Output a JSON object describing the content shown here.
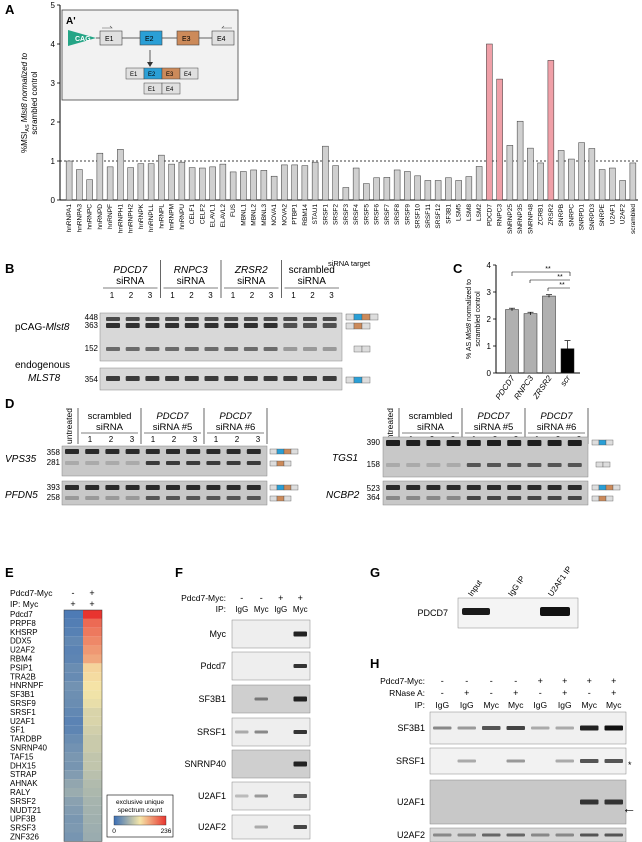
{
  "figure": {
    "panel_labels": [
      "A",
      "B",
      "C",
      "D",
      "E",
      "F",
      "G",
      "H"
    ]
  },
  "panel_a": {
    "inset_label": "A'",
    "inset_promoter": "CAG",
    "inset_exons": [
      "E1",
      "E2",
      "E3",
      "E4"
    ],
    "inset_products": [
      [
        "E1",
        "E2",
        "E3",
        "E4"
      ],
      [
        "E1",
        "E4"
      ]
    ],
    "ylabel_1": "%MSI",
    "ylabel_sub": "AS",
    "ylabel_2": "Mlst8 normalized to",
    "ylabel_3": "scrambled control",
    "xlabel": "siRNA target",
    "bar_colors": {
      "default": "#d0d0d0",
      "highlight": "#f0a0a8"
    }
  },
  "chart_data": [
    {
      "type": "bar",
      "title": "",
      "xlabel": "siRNA target",
      "ylabel": "%MSI AS Mlst8 normalized to scrambled control",
      "ylim": [
        0,
        5
      ],
      "yticks": [
        0,
        1,
        2,
        3,
        4,
        5
      ],
      "reference_line": 1,
      "categories": [
        "hnRNPA1",
        "hnRNPA3",
        "hnRNPC",
        "hnRNPD",
        "hnRNPF",
        "hnRNPH1",
        "hnRNPH2",
        "hnRNPK",
        "hnRNPLL",
        "hnRNPL",
        "hnRNPM",
        "hnRNPU",
        "CELF1",
        "CELF2",
        "ELAVL1",
        "ELAVL2",
        "FUS",
        "MBNL1",
        "MBNL2",
        "MBNL3",
        "NOVA1",
        "NOVA2",
        "PTBP1",
        "RBM14",
        "STAU1",
        "SRSF1",
        "SRSF2",
        "SRSF3",
        "SRSF4",
        "SRSF5",
        "SRSF6",
        "SRSF7",
        "SRSF8",
        "SRSF9",
        "SRSF10",
        "SRSF11",
        "SRSF12",
        "SF3B1",
        "LSM5",
        "LSM8",
        "LSM2",
        "PDCD7",
        "RNPC3",
        "SNRNP25",
        "SNRNP35",
        "SNRNP48",
        "ZCRB1",
        "ZRSR2",
        "SNRPB",
        "SNRPC",
        "SNRPD1",
        "SNRPD3",
        "SNRPE",
        "U2AF1",
        "U2AF2",
        "scrambled"
      ],
      "values": [
        1.0,
        0.78,
        0.52,
        1.2,
        0.85,
        1.3,
        0.83,
        0.93,
        0.93,
        1.15,
        0.92,
        0.97,
        0.83,
        0.82,
        0.85,
        0.92,
        0.72,
        0.73,
        0.77,
        0.76,
        0.61,
        0.9,
        0.9,
        0.88,
        0.97,
        1.38,
        0.88,
        0.32,
        0.82,
        0.42,
        0.57,
        0.58,
        0.77,
        0.73,
        0.62,
        0.5,
        0.5,
        0.57,
        0.5,
        0.6,
        0.86,
        4.0,
        3.1,
        1.4,
        2.02,
        1.33,
        0.95,
        3.58,
        1.27,
        1.05,
        1.47,
        1.32,
        0.78,
        0.82,
        0.5,
        0.95
      ],
      "highlighted": [
        "PDCD7",
        "RNPC3",
        "ZRSR2"
      ]
    },
    {
      "type": "bar",
      "title": "",
      "xlabel": "",
      "ylabel": "% AS Mlst8 normalized to scrambled control",
      "ylim": [
        0,
        4
      ],
      "yticks": [
        0,
        1,
        2,
        3,
        4
      ],
      "categories": [
        "PDCD7",
        "RNPC3",
        "ZRSR2",
        "scr"
      ],
      "values": [
        2.35,
        2.2,
        2.85,
        0.9
      ],
      "errors": [
        0.05,
        0.05,
        0.05,
        0.3
      ],
      "colors": [
        "#b0b0b0",
        "#b0b0b0",
        "#b0b0b0",
        "#000000"
      ],
      "significance": "**"
    }
  ],
  "panel_b": {
    "groups": [
      {
        "name": "PDCD7",
        "sub": "siRNA"
      },
      {
        "name": "RNPC3",
        "sub": "siRNA"
      },
      {
        "name": "ZRSR2",
        "sub": "siRNA"
      },
      {
        "name": "scrambled",
        "sub": "siRNA"
      }
    ],
    "lanes": [
      "1",
      "2",
      "3"
    ],
    "row1_label": "pCAG-",
    "row1_label_italic": "Mlst8",
    "row1_sizes": [
      "448",
      "363",
      "152"
    ],
    "row2_label_1": "endogenous",
    "row2_label_2": "MLST8",
    "row2_sizes": [
      "354"
    ]
  },
  "panel_c": {
    "ylabel_1": "% AS",
    "ylabel_italic": "Mlst8",
    "ylabel_2": "normalized to",
    "ylabel_3": "scrambled control",
    "sig": "**"
  },
  "panel_d": {
    "untreated": "untreated",
    "left_groups": [
      {
        "name": "scrambled",
        "sub": "siRNA"
      },
      {
        "name": "PDCD7",
        "sub": "siRNA #5"
      },
      {
        "name": "PDCD7",
        "sub": "siRNA #6"
      }
    ],
    "right_groups": [
      {
        "name": "scrambled",
        "sub": "siRNA"
      },
      {
        "name": "PDCD7",
        "sub": "siRNA #5"
      },
      {
        "name": "PDCD7",
        "sub": "siRNA #6"
      }
    ],
    "lanes": [
      "1",
      "2",
      "3"
    ],
    "genes_left": [
      {
        "name": "VPS35",
        "sizes": [
          "358",
          "281"
        ]
      },
      {
        "name": "PFDN5",
        "sizes": [
          "393",
          "258"
        ]
      }
    ],
    "genes_right": [
      {
        "name": "TGS1",
        "sizes": [
          "390",
          "158"
        ]
      },
      {
        "name": "NCBP2",
        "sizes": [
          "523",
          "364"
        ]
      }
    ]
  },
  "panel_e": {
    "header_pdcd7": "Pdcd7-Myc",
    "header_ip": "IP: Myc",
    "col_pdcd7": [
      "-",
      "+"
    ],
    "col_ip": [
      "+",
      "+"
    ],
    "proteins": [
      "Pdcd7",
      "PRPF8",
      "KHSRP",
      "DDX5",
      "U2AF2",
      "RBM4",
      "PSIP1",
      "TRA2B",
      "HNRNPF",
      "SF3B1",
      "SRSF9",
      "SRSF1",
      "U2AF1",
      "SF1",
      "TARDBP",
      "SNRNP40",
      "TAF15",
      "DHX15",
      "STRAP",
      "AHNAK",
      "RALY",
      "SRSF2",
      "NUDT21",
      "UPF3B",
      "SRSF3",
      "ZNF326"
    ],
    "legend_title_1": "exclusive unique",
    "legend_title_2": "spectrum count",
    "legend_min": "0",
    "legend_max": "236",
    "heat_values": [
      [
        12,
        236
      ],
      [
        15,
        200
      ],
      [
        18,
        190
      ],
      [
        25,
        180
      ],
      [
        20,
        170
      ],
      [
        22,
        160
      ],
      [
        30,
        130
      ],
      [
        28,
        125
      ],
      [
        35,
        120
      ],
      [
        32,
        115
      ],
      [
        30,
        110
      ],
      [
        25,
        100
      ],
      [
        20,
        100
      ],
      [
        22,
        95
      ],
      [
        30,
        90
      ],
      [
        35,
        90
      ],
      [
        40,
        85
      ],
      [
        38,
        85
      ],
      [
        45,
        80
      ],
      [
        55,
        75
      ],
      [
        60,
        72
      ],
      [
        50,
        68
      ],
      [
        45,
        66
      ],
      [
        40,
        64
      ],
      [
        42,
        62
      ],
      [
        38,
        60
      ]
    ]
  },
  "panel_f": {
    "header_pdcd7": "Pdcd7-Myc:",
    "header_ip": "IP:",
    "pdcd7_row": [
      "-",
      "-",
      "+",
      "+"
    ],
    "ip_row": [
      "IgG",
      "Myc",
      "IgG",
      "Myc"
    ],
    "blots": [
      "Myc",
      "Pdcd7",
      "SF3B1",
      "SRSF1",
      "SNRNP40",
      "U2AF1",
      "U2AF2"
    ]
  },
  "panel_g": {
    "lanes": [
      "Input",
      "IgG IP",
      "U2AF1 IP"
    ],
    "blot": "PDCD7"
  },
  "panel_h": {
    "header_pdcd7": "Pdcd7-Myc:",
    "header_rnase": "RNase A:",
    "header_ip": "IP:",
    "pdcd7_row": [
      "-",
      "-",
      "-",
      "-",
      "+",
      "+",
      "+",
      "+"
    ],
    "rnase_row": [
      "-",
      "+",
      "-",
      "+",
      "-",
      "+",
      "-",
      "+"
    ],
    "ip_row": [
      "IgG",
      "IgG",
      "Myc",
      "Myc",
      "IgG",
      "IgG",
      "Myc",
      "Myc"
    ],
    "blots": [
      "SF3B1",
      "SRSF1",
      "U2AF1",
      "U2AF2"
    ],
    "asterisk": "*",
    "arrow": "←"
  }
}
